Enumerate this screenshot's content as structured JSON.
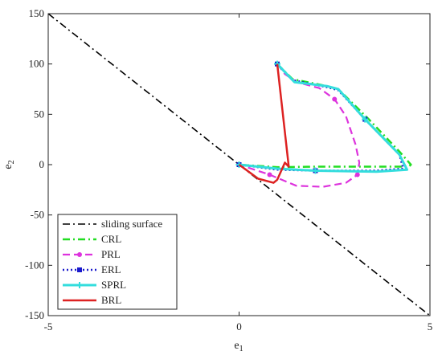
{
  "chart_data": {
    "type": "line",
    "xlabel": "e1",
    "ylabel": "e2",
    "xlim": [
      -5,
      5
    ],
    "ylim": [
      -150,
      150
    ],
    "x_ticks": [
      "-5",
      "0",
      "5"
    ],
    "y_ticks": [
      "-150",
      "-100",
      "-50",
      "0",
      "50",
      "100",
      "150"
    ],
    "grid": false,
    "legend_position": "bottom-left",
    "series": [
      {
        "name": "sliding surface",
        "color": "#000000",
        "style": "dashdot",
        "marker": "none",
        "x": [
          -5,
          5
        ],
        "y": [
          150,
          -150
        ]
      },
      {
        "name": "CRL",
        "color": "#22dd22",
        "style": "dashdot",
        "marker": "none",
        "x": [
          1.0,
          1.4,
          2.3,
          2.6,
          3.4,
          4.2,
          4.5,
          4.45,
          3.5,
          2.0,
          1.0,
          0.0
        ],
        "y": [
          100,
          85,
          78,
          75,
          45,
          13,
          0,
          -2,
          -2,
          -2,
          -2.5,
          0
        ]
      },
      {
        "name": "PRL",
        "color": "#dd33dd",
        "style": "dashed",
        "marker": "circle",
        "x": [
          1.0,
          1.2,
          1.5,
          2.1,
          2.5,
          2.8,
          3.05,
          3.15,
          3.1,
          2.8,
          2.2,
          1.5,
          0.8,
          0.0
        ],
        "y": [
          100,
          90,
          82,
          76,
          65,
          48,
          20,
          2,
          -10,
          -18,
          -22,
          -21,
          -10,
          0
        ]
      },
      {
        "name": "ERL",
        "color": "#1a1acc",
        "style": "dotted",
        "marker": "square",
        "x": [
          1.0,
          1.4,
          2.3,
          2.6,
          3.3,
          4.2,
          4.3,
          3.6,
          2.0,
          1.0,
          0.0
        ],
        "y": [
          100,
          84,
          77,
          74,
          45,
          10,
          -4,
          -6,
          -6,
          -5,
          0
        ]
      },
      {
        "name": "SPRL",
        "color": "#33dddd",
        "style": "solid",
        "marker": "plus",
        "x": [
          1.0,
          1.45,
          2.3,
          2.6,
          3.3,
          4.2,
          4.4,
          3.6,
          2.0,
          1.0,
          0.0
        ],
        "y": [
          100,
          82,
          78,
          75,
          45,
          10,
          -5,
          -7,
          -6,
          -4,
          0
        ]
      },
      {
        "name": "BRL",
        "color": "#dd2222",
        "style": "solid",
        "marker": "none",
        "x": [
          1.0,
          1.3,
          1.2,
          1.0,
          0.9,
          0.5,
          0.0
        ],
        "y": [
          100,
          -2,
          2,
          -15,
          -18,
          -14,
          0
        ]
      }
    ]
  }
}
